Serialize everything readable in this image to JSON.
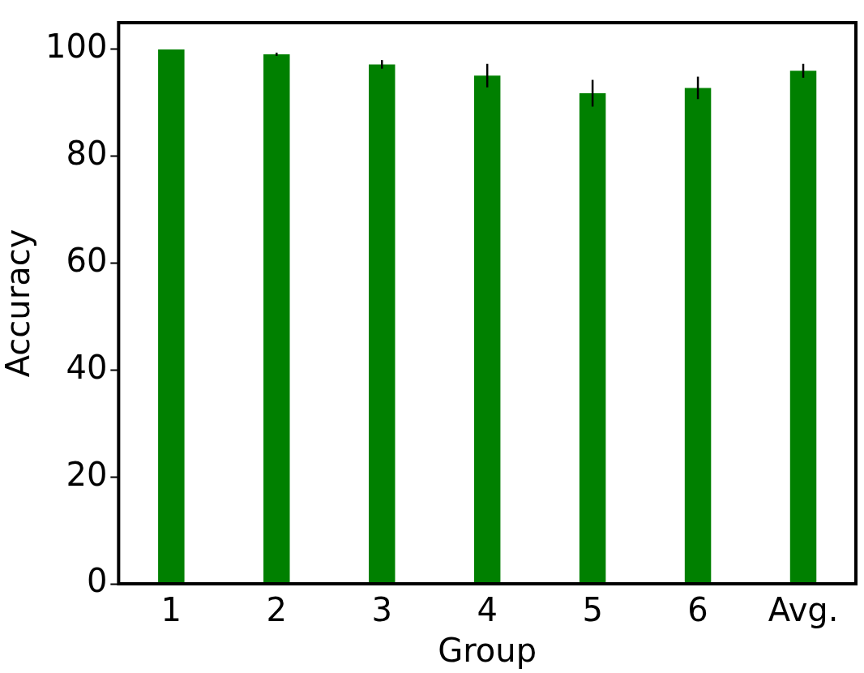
{
  "chart_data": {
    "type": "bar",
    "xlabel": "Group",
    "ylabel": "Accuracy",
    "categories": [
      "1",
      "2",
      "3",
      "4",
      "5",
      "6",
      "Avg."
    ],
    "values": [
      100,
      99.1,
      97.2,
      95.1,
      91.8,
      92.8,
      96.0
    ],
    "errors": [
      null,
      0.3,
      0.8,
      2.2,
      2.5,
      2.1,
      1.3
    ],
    "color": "#008000",
    "ylim": [
      0,
      105
    ],
    "yticks": [
      0,
      20,
      40,
      60,
      80,
      100
    ],
    "grid": false,
    "legend": false
  }
}
